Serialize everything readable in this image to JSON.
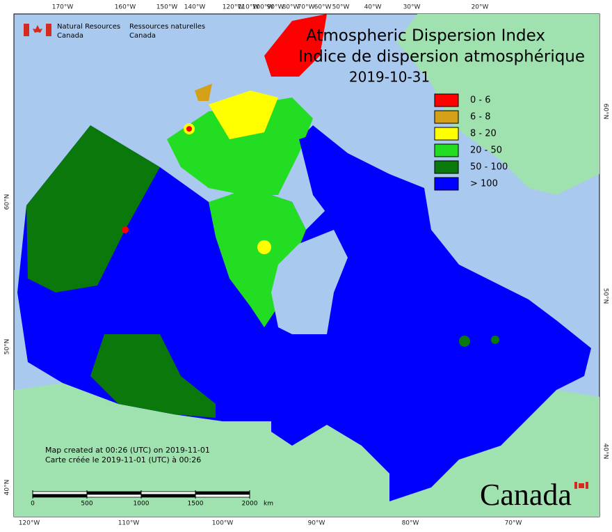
{
  "signature": {
    "en_line1": "Natural Resources",
    "en_line2": "Canada",
    "fr_line1": "Ressources naturelles",
    "fr_line2": "Canada"
  },
  "title": {
    "line1": "Atmospheric Dispersion Index",
    "line2": "Indice de dispersion atmosphérique",
    "date": "2019-10-31"
  },
  "legend": [
    {
      "label": "0 - 6",
      "color": "#ff0000"
    },
    {
      "label": "6 - 8",
      "color": "#d4a017"
    },
    {
      "label": "8 - 20",
      "color": "#ffff00"
    },
    {
      "label": "20 - 50",
      "color": "#22dd22"
    },
    {
      "label": "50 - 100",
      "color": "#0a780a"
    },
    {
      "label": "> 100",
      "color": "#0000ff"
    }
  ],
  "footer": {
    "en": "Map created at 00:26 (UTC) on 2019-11-01",
    "fr": "Carte créée le 2019-11-01 (UTC) à 00:26"
  },
  "scale": {
    "ticks": [
      0,
      500,
      1000,
      1500,
      2000
    ],
    "unit": "km"
  },
  "graticule": {
    "top": [
      "170°W",
      "160°W",
      "150°W",
      "140°W",
      "120°W",
      "110°W",
      "100°W",
      "90°W",
      "80°W",
      "70°W",
      "60°W",
      "50°W",
      "40°W",
      "30°W",
      "20°W"
    ],
    "bottom": [
      "120°W",
      "110°W",
      "100°W",
      "90°W",
      "80°W",
      "70°W"
    ],
    "left": [
      "60°N",
      "50°N",
      "40°N"
    ],
    "right": [
      "60°N",
      "50°N",
      "40°N"
    ]
  },
  "wordmark": "Canada"
}
